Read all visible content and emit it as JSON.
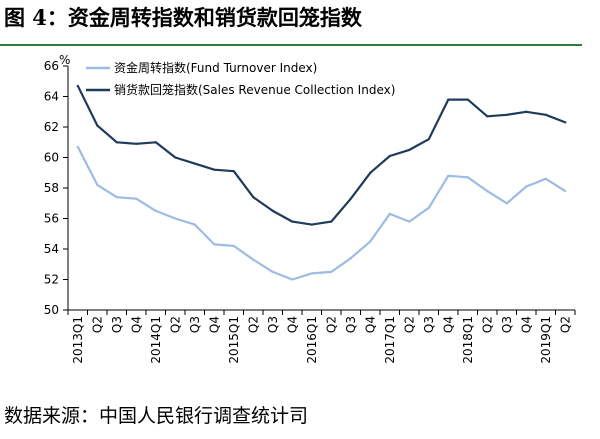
{
  "title": "图 4：资金周转指数和销货款回笼指数",
  "source": "数据来源：中国人民银行调查统计司",
  "colors": {
    "rule": "#2e7d32",
    "series1": "#9dbbe4",
    "series2": "#203a5c"
  },
  "chart_data": {
    "type": "line",
    "unit_label": "%",
    "ylim": [
      50,
      66
    ],
    "yticks": [
      50,
      52,
      54,
      56,
      58,
      60,
      62,
      64,
      66
    ],
    "categories": [
      "2013Q1",
      "Q2",
      "Q3",
      "Q4",
      "2014Q1",
      "Q2",
      "Q3",
      "Q4",
      "2015Q1",
      "Q2",
      "Q3",
      "Q4",
      "2016Q1",
      "Q2",
      "Q3",
      "Q4",
      "2017Q1",
      "Q2",
      "Q3",
      "Q4",
      "2018Q1",
      "Q2",
      "Q3",
      "Q4",
      "2019Q1",
      "Q2"
    ],
    "legend_position": "top-left",
    "grid": false,
    "series": [
      {
        "name": "资金周转指数(Fund Turnover Index)",
        "color": "#9dbbe4",
        "values": [
          60.7,
          58.2,
          57.4,
          57.3,
          56.5,
          56.0,
          55.6,
          54.3,
          54.2,
          53.3,
          52.5,
          52.0,
          52.4,
          52.5,
          53.4,
          54.5,
          56.3,
          55.8,
          56.7,
          58.8,
          58.7,
          57.8,
          57.0,
          58.1,
          58.6,
          57.8
        ]
      },
      {
        "name": "销货款回笼指数(Sales Revenue Collection Index)",
        "color": "#203a5c",
        "values": [
          64.7,
          62.1,
          61.0,
          60.9,
          61.0,
          60.0,
          59.6,
          59.2,
          59.1,
          57.4,
          56.5,
          55.8,
          55.6,
          55.8,
          57.3,
          59.0,
          60.1,
          60.5,
          61.2,
          63.8,
          63.8,
          62.7,
          62.8,
          63.0,
          62.8,
          62.3
        ]
      }
    ]
  }
}
